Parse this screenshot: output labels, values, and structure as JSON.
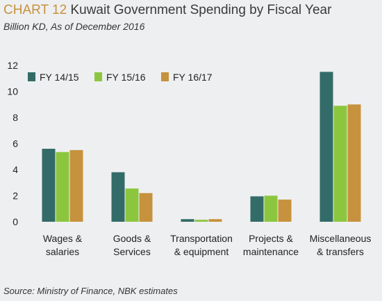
{
  "header": {
    "chart_label": "CHART 12",
    "title": "Kuwait Government Spending by Fiscal Year",
    "subtitle": "Billion KD, As of December 2016"
  },
  "footer": {
    "source": "Source:  Ministry of Finance, NBK estimates"
  },
  "colors": {
    "background": "#eeeff0",
    "FY 14/15": "#336b68",
    "FY 15/16": "#8cc63e",
    "FY 16/17": "#c6923e",
    "chart_label": "#c6923e"
  },
  "chart_data": {
    "type": "bar",
    "title": "Kuwait Government Spending by Fiscal Year",
    "subtitle": "Billion KD, As of December 2016",
    "xlabel": "",
    "ylabel": "",
    "ylim": [
      0,
      12
    ],
    "yticks": [
      0,
      2,
      4,
      6,
      8,
      10,
      12
    ],
    "grid": false,
    "legend_position": "top-left",
    "categories": [
      [
        "Wages &",
        "salaries"
      ],
      [
        "Goods &",
        "Services"
      ],
      [
        "Transportation",
        "& equipment"
      ],
      [
        "Projects &",
        "maintenance"
      ],
      [
        "Miscellaneous",
        "& transfers"
      ]
    ],
    "series": [
      {
        "name": "FY 14/15",
        "values": [
          5.6,
          3.8,
          0.2,
          1.95,
          11.5
        ]
      },
      {
        "name": "FY 15/16",
        "values": [
          5.35,
          2.55,
          0.15,
          2.0,
          8.9
        ]
      },
      {
        "name": "FY 16/17",
        "values": [
          5.5,
          2.2,
          0.2,
          1.7,
          9.0
        ]
      }
    ]
  }
}
